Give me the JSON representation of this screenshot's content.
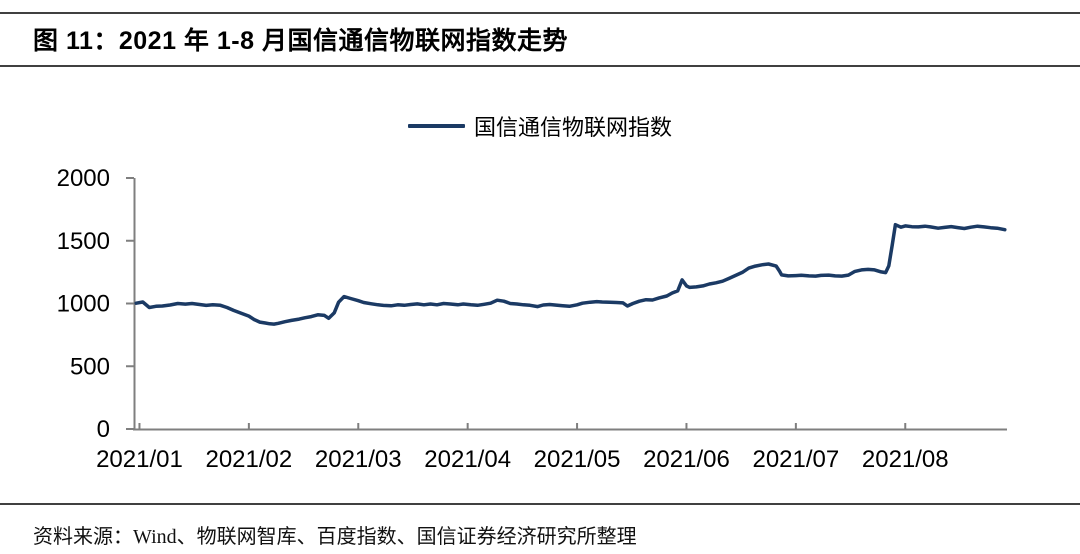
{
  "page": {
    "title": "图 11：2021 年 1-8 月国信通信物联网指数走势",
    "source_text": "资料来源：Wind、物联网智库、百度指数、国信证券经济研究所整理"
  },
  "legend": {
    "label": "国信通信物联网指数"
  },
  "colors": {
    "line": "#1b3a64",
    "axis": "#7f7f7f",
    "label_text": "#000000",
    "rule": "#404040"
  },
  "chart_data": {
    "type": "line",
    "title": "2021 年 1-8 月国信通信物联网指数走势",
    "legend_position": "top-center",
    "grid": false,
    "xlabel": "",
    "ylabel": "",
    "x_tick_labels": [
      "2021/01",
      "2021/02",
      "2021/03",
      "2021/04",
      "2021/05",
      "2021/06",
      "2021/07",
      "2021/08"
    ],
    "x_tick_positions": [
      0,
      1,
      2,
      3,
      4,
      5,
      6,
      7
    ],
    "xlim": [
      -0.05,
      7.93
    ],
    "y_ticks": [
      0,
      500,
      1000,
      1500,
      2000
    ],
    "ylim": [
      0,
      2000
    ],
    "series": [
      {
        "name": "国信通信物联网指数",
        "points": [
          [
            -0.03,
            1002
          ],
          [
            0.03,
            1012
          ],
          [
            0.09,
            968
          ],
          [
            0.15,
            978
          ],
          [
            0.21,
            980
          ],
          [
            0.28,
            988
          ],
          [
            0.35,
            1000
          ],
          [
            0.42,
            995
          ],
          [
            0.48,
            1000
          ],
          [
            0.55,
            992
          ],
          [
            0.61,
            985
          ],
          [
            0.67,
            990
          ],
          [
            0.74,
            986
          ],
          [
            0.8,
            968
          ],
          [
            0.86,
            945
          ],
          [
            0.93,
            922
          ],
          [
            1,
            900
          ],
          [
            1.05,
            872
          ],
          [
            1.1,
            852
          ],
          [
            1.15,
            845
          ],
          [
            1.19,
            838
          ],
          [
            1.23,
            836
          ],
          [
            1.27,
            842
          ],
          [
            1.33,
            855
          ],
          [
            1.39,
            865
          ],
          [
            1.46,
            876
          ],
          [
            1.51,
            886
          ],
          [
            1.57,
            896
          ],
          [
            1.63,
            910
          ],
          [
            1.69,
            905
          ],
          [
            1.73,
            882
          ],
          [
            1.78,
            925
          ],
          [
            1.82,
            1010
          ],
          [
            1.87,
            1055
          ],
          [
            1.93,
            1040
          ],
          [
            2,
            1022
          ],
          [
            2.05,
            1008
          ],
          [
            2.12,
            998
          ],
          [
            2.18,
            990
          ],
          [
            2.23,
            985
          ],
          [
            2.3,
            982
          ],
          [
            2.36,
            990
          ],
          [
            2.42,
            986
          ],
          [
            2.48,
            992
          ],
          [
            2.54,
            997
          ],
          [
            2.6,
            990
          ],
          [
            2.66,
            996
          ],
          [
            2.72,
            990
          ],
          [
            2.78,
            1000
          ],
          [
            2.84,
            996
          ],
          [
            2.91,
            990
          ],
          [
            2.96,
            996
          ],
          [
            3.03,
            990
          ],
          [
            3.09,
            986
          ],
          [
            3.15,
            994
          ],
          [
            3.21,
            1002
          ],
          [
            3.27,
            1026
          ],
          [
            3.33,
            1018
          ],
          [
            3.39,
            1000
          ],
          [
            3.45,
            996
          ],
          [
            3.51,
            990
          ],
          [
            3.57,
            986
          ],
          [
            3.64,
            975
          ],
          [
            3.69,
            988
          ],
          [
            3.75,
            992
          ],
          [
            3.82,
            986
          ],
          [
            3.87,
            982
          ],
          [
            3.93,
            978
          ],
          [
            4,
            990
          ],
          [
            4.05,
            1002
          ],
          [
            4.12,
            1010
          ],
          [
            4.18,
            1015
          ],
          [
            4.23,
            1012
          ],
          [
            4.3,
            1010
          ],
          [
            4.36,
            1008
          ],
          [
            4.42,
            1005
          ],
          [
            4.46,
            980
          ],
          [
            4.51,
            1000
          ],
          [
            4.57,
            1018
          ],
          [
            4.63,
            1030
          ],
          [
            4.69,
            1028
          ],
          [
            4.75,
            1045
          ],
          [
            4.82,
            1060
          ],
          [
            4.87,
            1084
          ],
          [
            4.92,
            1100
          ],
          [
            4.96,
            1188
          ],
          [
            5,
            1140
          ],
          [
            5.03,
            1128
          ],
          [
            5.09,
            1132
          ],
          [
            5.15,
            1140
          ],
          [
            5.21,
            1155
          ],
          [
            5.27,
            1165
          ],
          [
            5.33,
            1178
          ],
          [
            5.39,
            1200
          ],
          [
            5.46,
            1228
          ],
          [
            5.51,
            1248
          ],
          [
            5.57,
            1282
          ],
          [
            5.63,
            1298
          ],
          [
            5.69,
            1308
          ],
          [
            5.75,
            1315
          ],
          [
            5.82,
            1298
          ],
          [
            5.85,
            1258
          ],
          [
            5.87,
            1228
          ],
          [
            5.93,
            1220
          ],
          [
            6,
            1222
          ],
          [
            6.05,
            1225
          ],
          [
            6.12,
            1220
          ],
          [
            6.18,
            1218
          ],
          [
            6.23,
            1224
          ],
          [
            6.3,
            1226
          ],
          [
            6.36,
            1220
          ],
          [
            6.42,
            1218
          ],
          [
            6.48,
            1226
          ],
          [
            6.54,
            1256
          ],
          [
            6.6,
            1268
          ],
          [
            6.66,
            1272
          ],
          [
            6.72,
            1268
          ],
          [
            6.78,
            1252
          ],
          [
            6.82,
            1246
          ],
          [
            6.85,
            1300
          ],
          [
            6.88,
            1460
          ],
          [
            6.91,
            1628
          ],
          [
            6.96,
            1608
          ],
          [
            7,
            1618
          ],
          [
            7.06,
            1612
          ],
          [
            7.12,
            1610
          ],
          [
            7.18,
            1616
          ],
          [
            7.23,
            1610
          ],
          [
            7.3,
            1600
          ],
          [
            7.36,
            1606
          ],
          [
            7.42,
            1613
          ],
          [
            7.48,
            1605
          ],
          [
            7.54,
            1598
          ],
          [
            7.6,
            1608
          ],
          [
            7.66,
            1616
          ],
          [
            7.72,
            1610
          ],
          [
            7.78,
            1604
          ],
          [
            7.84,
            1600
          ],
          [
            7.91,
            1588
          ]
        ]
      }
    ]
  }
}
